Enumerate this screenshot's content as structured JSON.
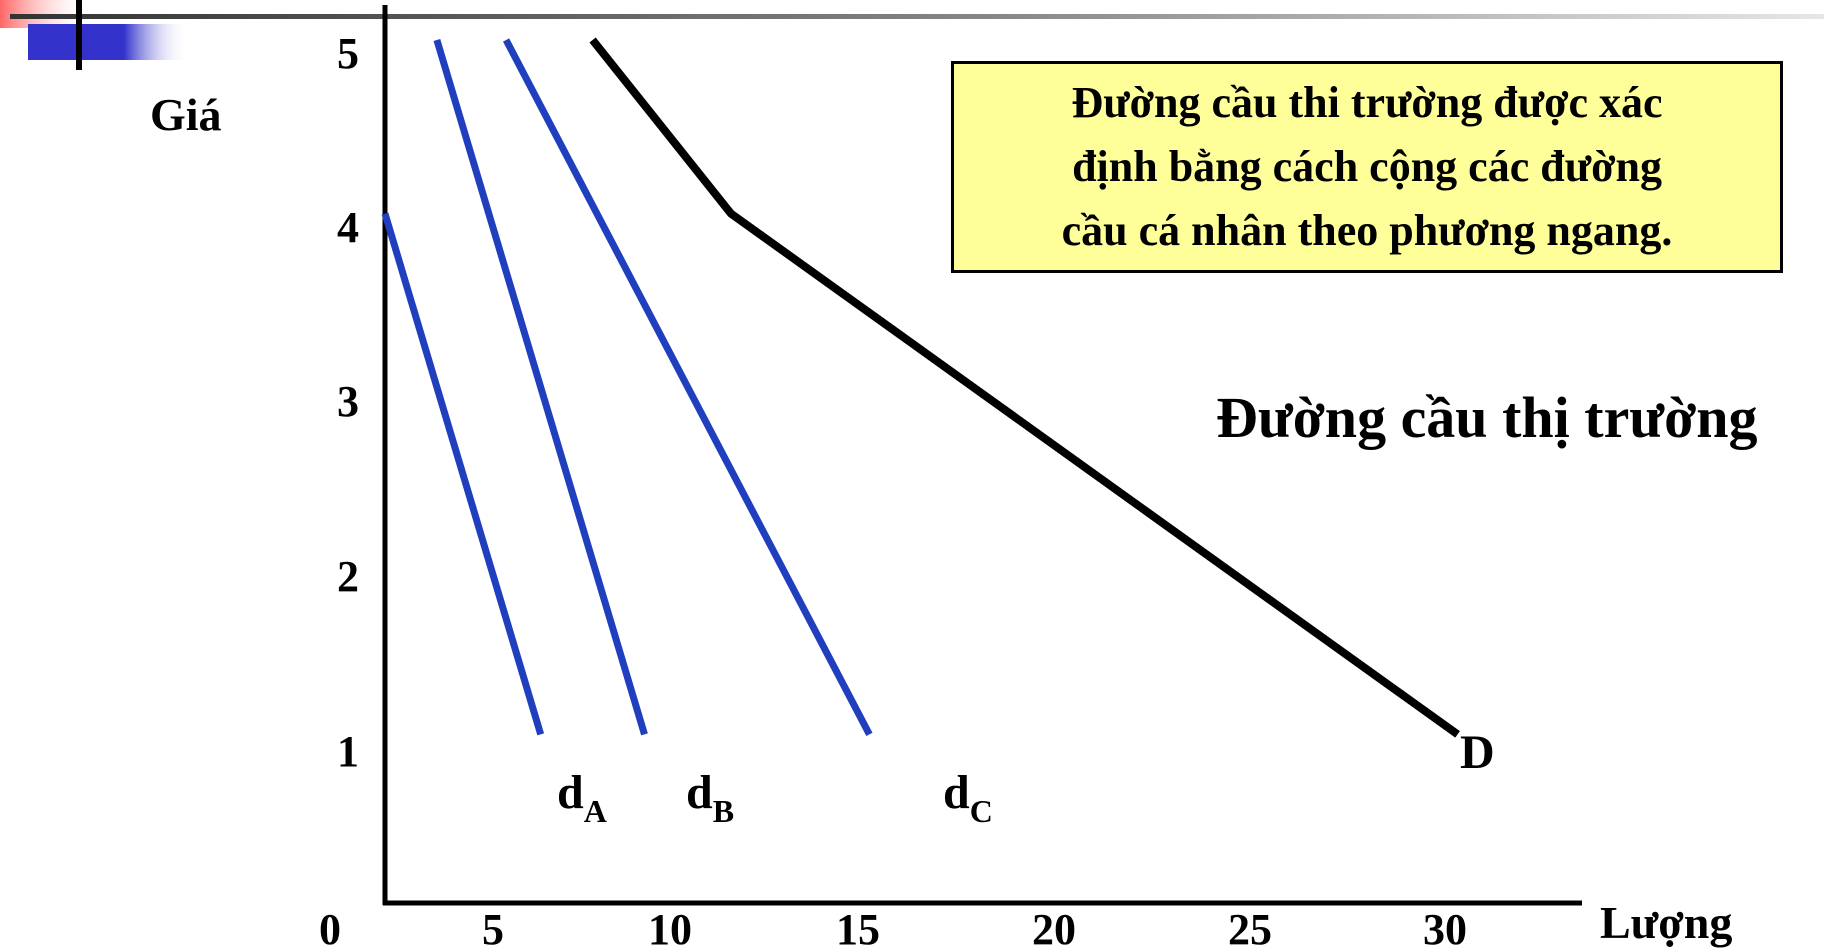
{
  "chart_data": {
    "type": "line",
    "ylabel": "Giá",
    "xlabel": "Lượng",
    "x_ticks": [
      "0",
      "5",
      "10",
      "15",
      "20",
      "25",
      "30"
    ],
    "y_ticks": [
      "1",
      "2",
      "3",
      "4",
      "5"
    ],
    "xlim": [
      0,
      30
    ],
    "ylim": [
      0,
      5
    ],
    "grid": false,
    "series": [
      {
        "name": "dA",
        "label_main": "d",
        "label_sub": "A",
        "color": "#1f3fbf",
        "points": [
          {
            "x": 0,
            "y": 4
          },
          {
            "x": 4.5,
            "y": 1
          }
        ]
      },
      {
        "name": "dB",
        "label_main": "d",
        "label_sub": "B",
        "color": "#1f3fbf",
        "points": [
          {
            "x": 1.5,
            "y": 5
          },
          {
            "x": 7.5,
            "y": 1
          }
        ]
      },
      {
        "name": "dC",
        "label_main": "d",
        "label_sub": "C",
        "color": "#1f3fbf",
        "points": [
          {
            "x": 3.5,
            "y": 5
          },
          {
            "x": 14,
            "y": 1
          }
        ]
      },
      {
        "name": "D",
        "label_main": "D",
        "label_sub": "",
        "color": "#000000",
        "points": [
          {
            "x": 6,
            "y": 5
          },
          {
            "x": 10,
            "y": 4
          },
          {
            "x": 31,
            "y": 1
          }
        ]
      }
    ],
    "annotations": {
      "market_curve_label": "Đường cầu thị trường",
      "note_lines": [
        "Đường cầu thi trường được xác",
        "định bằng cách cộng các đường",
        "cầu cá nhân theo phương ngang."
      ]
    },
    "colors": {
      "individual_curves": "#1f3fbf",
      "market_curve": "#000000",
      "note_background": "#ffff99",
      "slide_accent": "#3333cc",
      "slide_accent_light": "#ff9999"
    }
  }
}
